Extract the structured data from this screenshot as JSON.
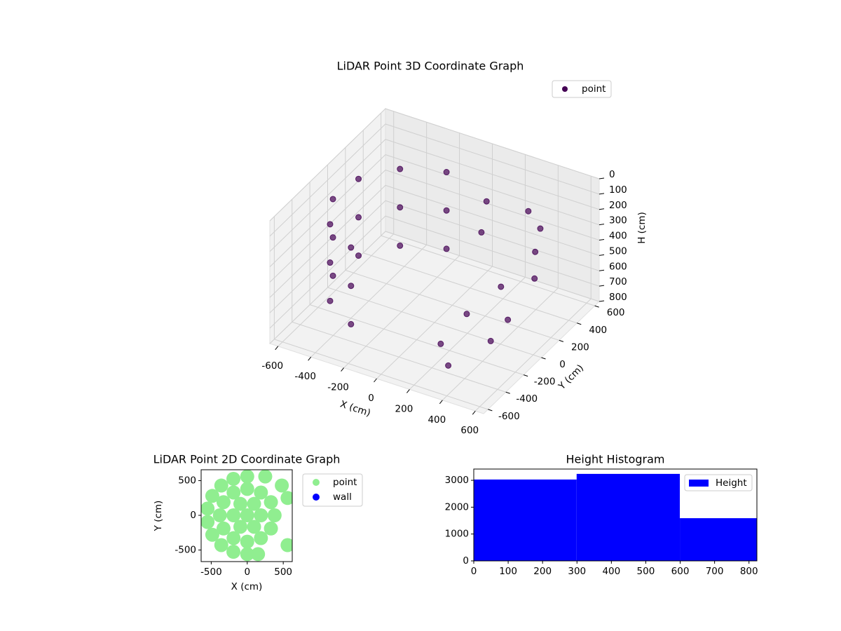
{
  "chart_data": [
    {
      "type": "scatter3d",
      "title": "LiDAR Point 3D Coordinate Graph",
      "xlabel": "X (cm)",
      "ylabel": "Y (cm)",
      "zlabel": "H (cm)",
      "xlim": [
        -650,
        650
      ],
      "ylim": [
        -650,
        650
      ],
      "zlim": [
        800,
        0
      ],
      "xticks": [
        -600,
        -400,
        -200,
        0,
        200,
        400,
        600
      ],
      "yticks": [
        -600,
        -400,
        -200,
        0,
        200,
        400,
        600
      ],
      "zticks": [
        0,
        100,
        200,
        300,
        400,
        500,
        600,
        700,
        800
      ],
      "grid": true,
      "legend": "upper right",
      "series": [
        {
          "name": "point",
          "color": "#440154",
          "x": [
            -183,
            -409,
            -551,
            -573,
            -468,
            -264,
            -183,
            -409,
            -551,
            -573,
            -468,
            -264,
            -183,
            -409,
            -551,
            -573,
            -468,
            -264,
            300,
            400,
            450,
            500,
            350,
            250,
            200,
            450,
            100,
            150,
            300,
            500
          ],
          "y": [
            473,
            368,
            164,
            -83,
            -309,
            -451,
            473,
            368,
            164,
            -83,
            -309,
            -451,
            473,
            368,
            164,
            -83,
            -309,
            -451,
            500,
            450,
            300,
            200,
            100,
            -100,
            -300,
            -200,
            400,
            250,
            -400,
            -100
          ],
          "h": [
            150,
            150,
            150,
            150,
            150,
            150,
            400,
            400,
            400,
            400,
            400,
            400,
            650,
            650,
            650,
            650,
            650,
            650,
            250,
            300,
            350,
            450,
            500,
            600,
            700,
            650,
            200,
            300,
            750,
            550
          ]
        }
      ]
    },
    {
      "type": "scatter",
      "title": "LiDAR Point 2D Coordinate Graph",
      "xlabel": "X (cm)",
      "ylabel": "Y (cm)",
      "xlim": [
        -640,
        625
      ],
      "ylim": [
        -667,
        657
      ],
      "xticks": [
        -500,
        0,
        500
      ],
      "yticks": [
        -500,
        0,
        500
      ],
      "legend": "outside right",
      "series": [
        {
          "name": "point",
          "color": "#90ee90",
          "x": [
            0,
            -192,
            -360,
            -485,
            -551,
            -551,
            -485,
            -360,
            -192,
            0,
            150,
            560,
            560,
            480,
            250,
            380,
            329,
            190,
            0,
            -190,
            -329,
            -380,
            -329,
            -190,
            0,
            190,
            329,
            190,
            95,
            -95,
            -190,
            -95,
            95,
            0
          ],
          "y": [
            560,
            526,
            429,
            280,
            97,
            -97,
            -280,
            -429,
            -526,
            -560,
            -560,
            -430,
            250,
            430,
            560,
            0,
            190,
            329,
            380,
            329,
            190,
            0,
            -190,
            -329,
            -380,
            -329,
            -190,
            0,
            165,
            165,
            0,
            -165,
            -165,
            0
          ]
        },
        {
          "name": "wall",
          "color": "#0000ff",
          "x": [],
          "y": []
        }
      ]
    },
    {
      "type": "histogram",
      "title": "Height Histogram",
      "bins": [
        0,
        299,
        599,
        823
      ],
      "values": [
        3030,
        3240,
        1590
      ],
      "xlim": [
        0,
        823
      ],
      "ylim": [
        0,
        3420
      ],
      "xticks": [
        0,
        100,
        200,
        300,
        400,
        500,
        600,
        700,
        800
      ],
      "yticks": [
        0,
        1000,
        2000,
        3000
      ],
      "series_name": "Height",
      "color": "#0000ff",
      "legend": "upper right"
    }
  ]
}
